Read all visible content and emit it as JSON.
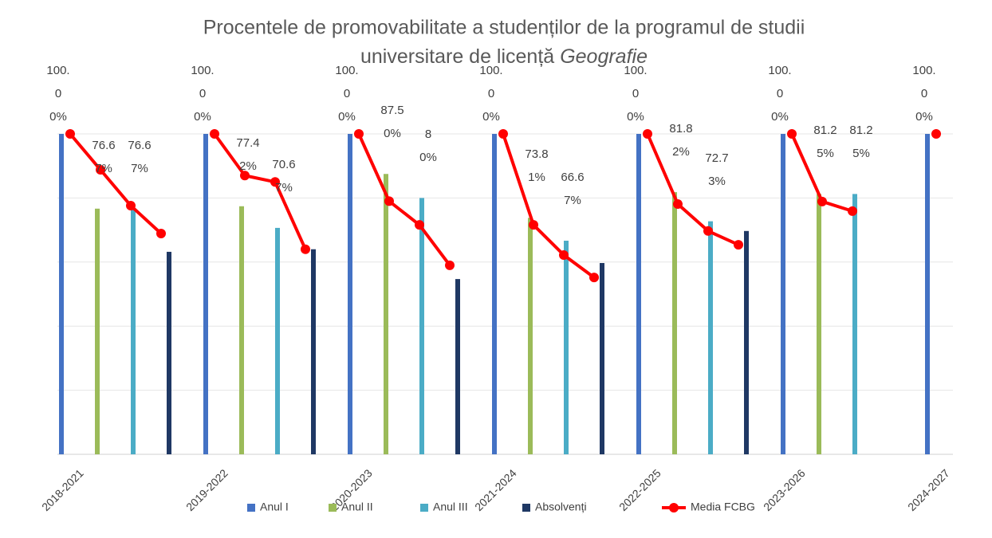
{
  "chart_data": {
    "type": "bar",
    "title": "Procentele de promovabilitate a studenților de la programul de studii",
    "title_line2": "universitare de licență",
    "title_emphasis": "Geografie",
    "categories": [
      "2018-2021",
      "2019-2022",
      "2020-2023",
      "2021-2024",
      "2022-2025",
      "2023-2026",
      "2024-2027"
    ],
    "ylim": [
      0,
      100
    ],
    "yticks": [
      0,
      20,
      40,
      60,
      80,
      100
    ],
    "grid": true,
    "legend": "bottom",
    "series": [
      {
        "name": "Anul I",
        "color": "#4472c4",
        "values": [
          100,
          100,
          100,
          100,
          100,
          100,
          100
        ],
        "value_labels": [
          "100.00%",
          "100.00%",
          "100.00%",
          "100.00%",
          "100.00%",
          "100.00%",
          "100.00%"
        ]
      },
      {
        "name": "Anul II",
        "color": "#9bbb59",
        "values": [
          76.67,
          77.42,
          87.5,
          73.81,
          81.82,
          81.25,
          null
        ],
        "value_labels": [
          "76.67%",
          "77.42%",
          "87.50%",
          "73.81%",
          "81.82%",
          "81.25%",
          null
        ]
      },
      {
        "name": "Anul III",
        "color": "#4bacc6",
        "values": [
          76.67,
          70.67,
          80,
          66.67,
          72.73,
          81.25,
          null
        ],
        "value_labels": [
          "76.67%",
          "70.67%",
          "80%",
          "66.67%",
          "72.73%",
          "81.25%",
          null
        ]
      },
      {
        "name": "Absolvenți",
        "color": "#1f3864",
        "values": [
          63.2,
          64,
          54.7,
          59.7,
          69.7,
          null,
          null
        ]
      },
      {
        "name": "Media FCBG",
        "color": "#ff0000",
        "line": true,
        "values": [
          [
            100,
            88.8,
            77.6,
            68.9
          ],
          [
            100,
            87,
            85,
            64
          ],
          [
            100,
            79,
            71.6,
            59
          ],
          [
            100,
            71.6,
            62.2,
            55.2
          ],
          [
            100,
            78.1,
            69.7,
            65.4
          ],
          [
            100,
            78.9,
            75.9,
            null
          ],
          [
            100,
            null,
            null,
            null
          ]
        ]
      }
    ]
  }
}
